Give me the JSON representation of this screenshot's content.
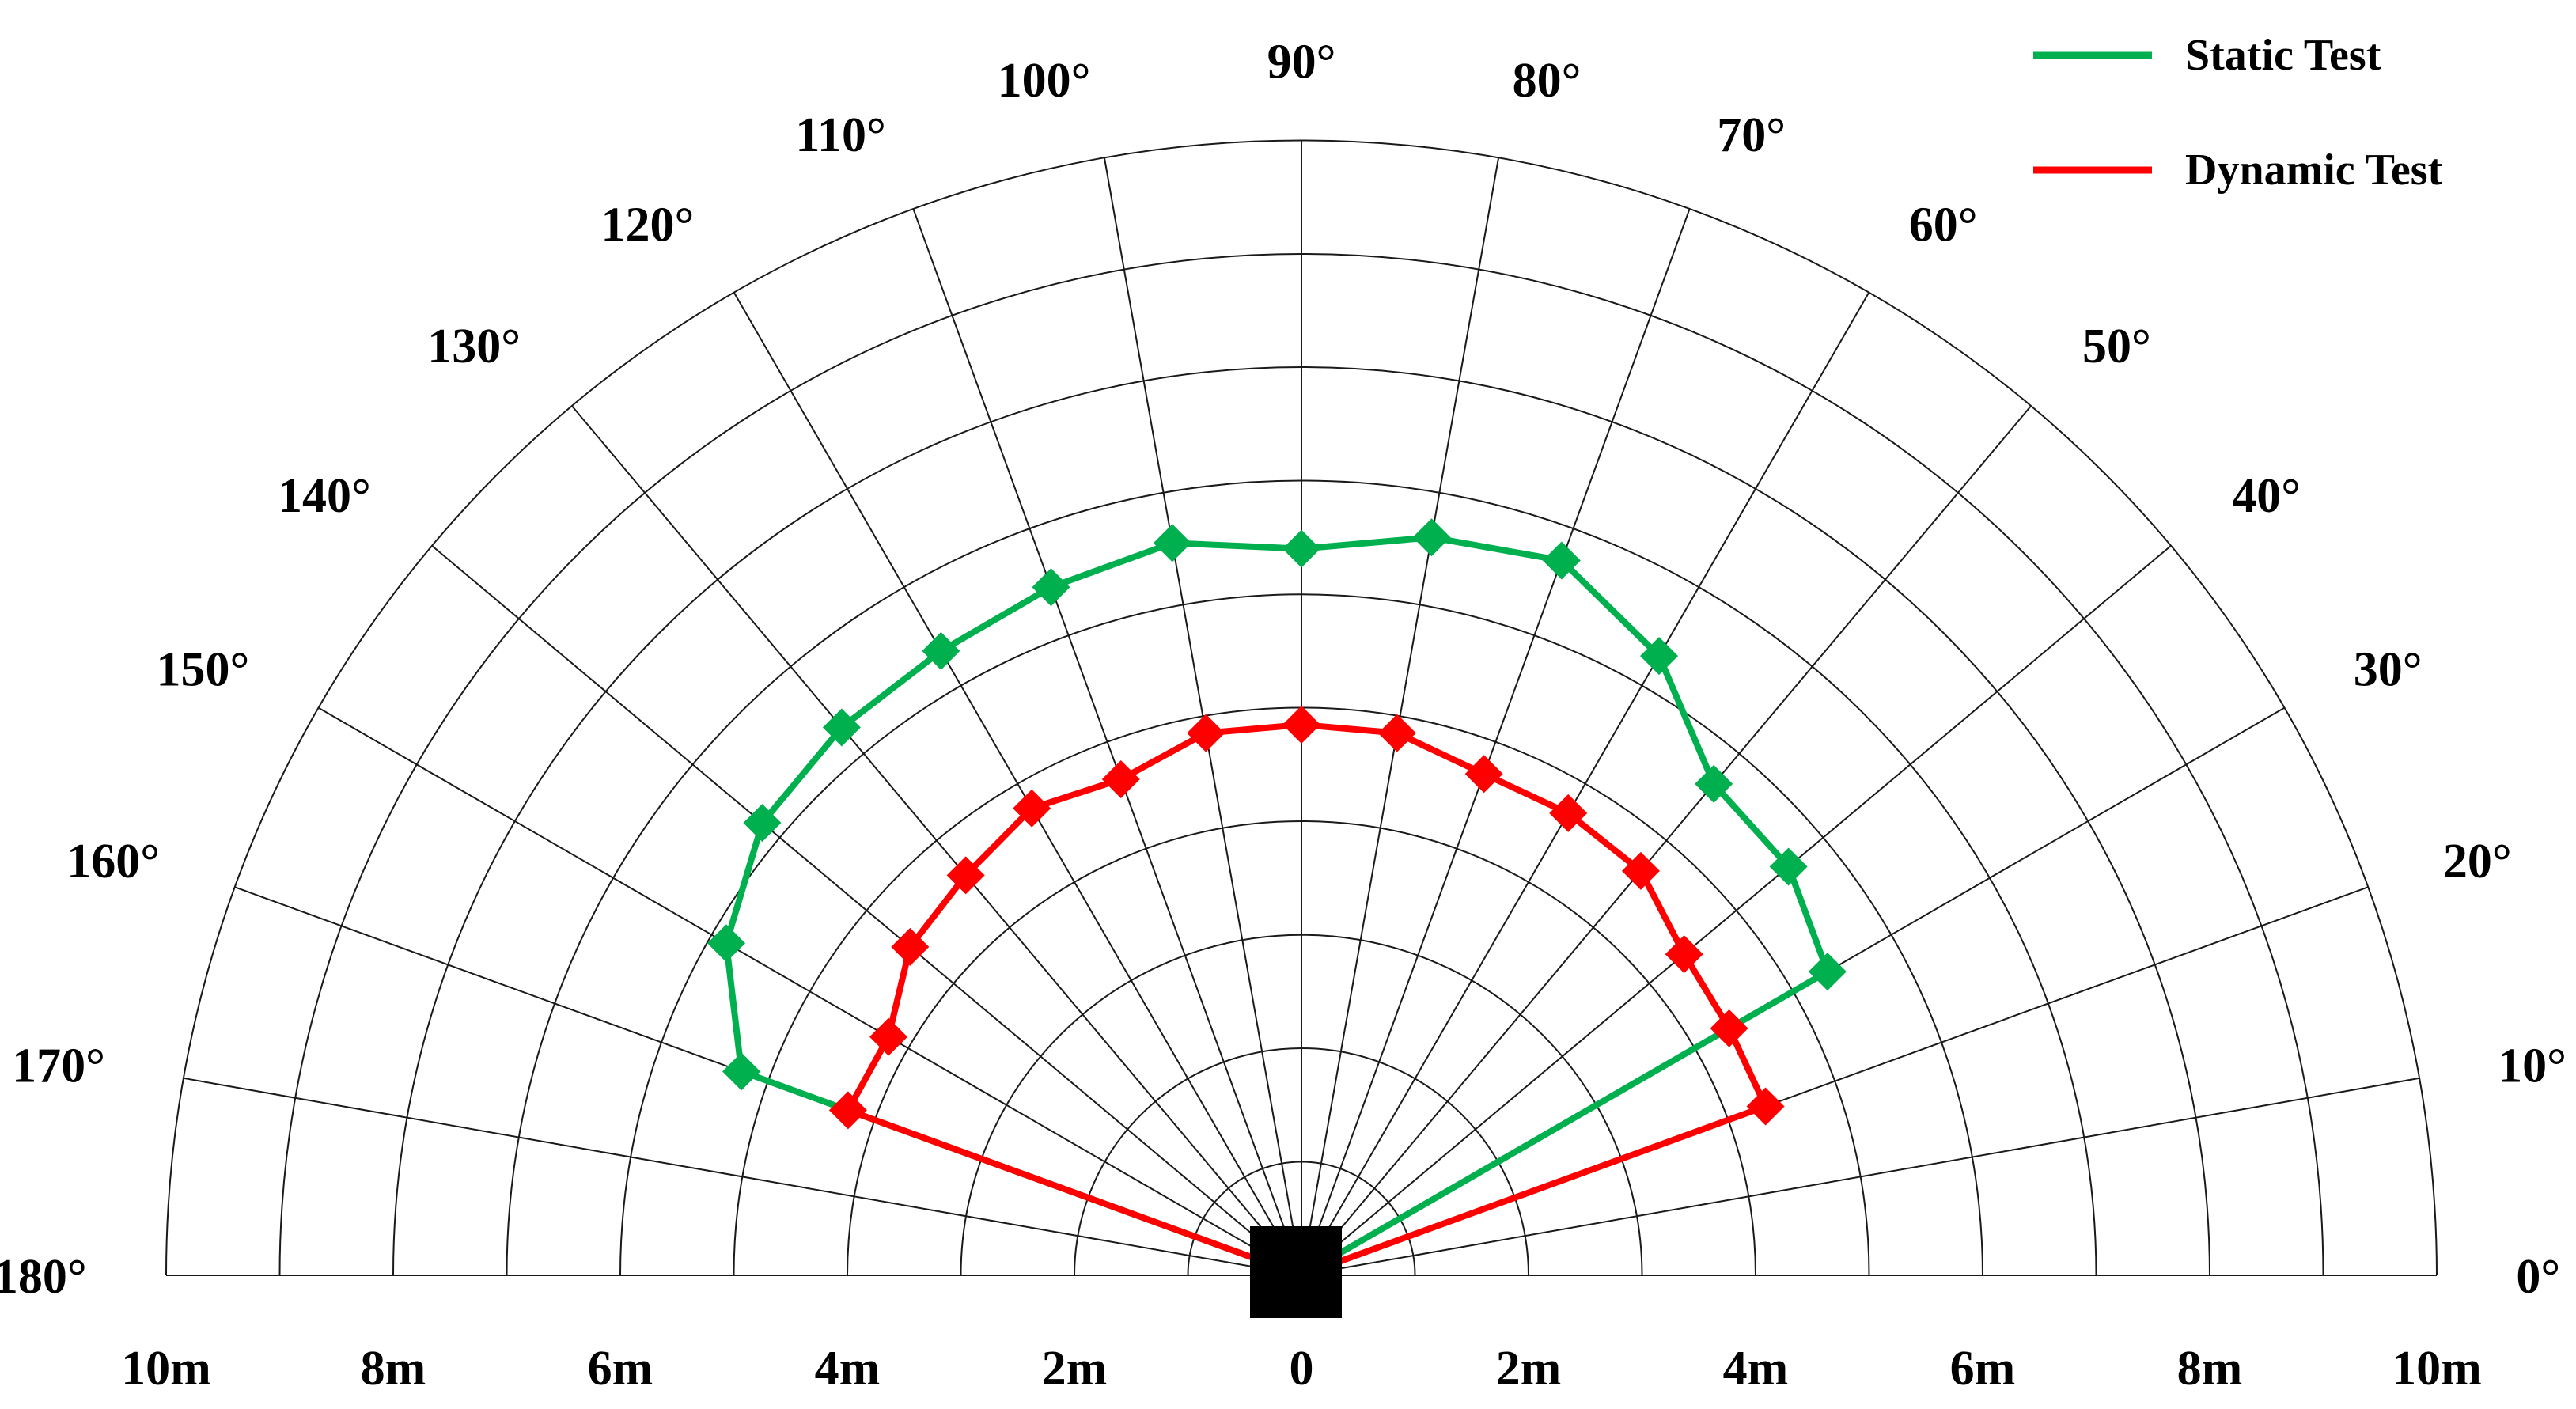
{
  "chart_data": {
    "type": "polar-line",
    "title": "",
    "angle_range_deg": [
      0,
      180
    ],
    "angle_tick_step_deg": 10,
    "angle_tick_labels": [
      "0°",
      "10°",
      "20°",
      "30°",
      "40°",
      "50°",
      "60°",
      "70°",
      "80°",
      "90°",
      "100°",
      "110°",
      "120°",
      "130°",
      "140°",
      "150°",
      "160°",
      "170°",
      "180°"
    ],
    "radius_range_m": [
      0,
      10
    ],
    "radius_ring_step_m": 1,
    "distance_tick_labels": [
      "10m",
      "8m",
      "6m",
      "4m",
      "2m",
      "0",
      "2m",
      "4m",
      "6m",
      "8m",
      "10m"
    ],
    "legend_position": "top-right",
    "series": [
      {
        "name": "Static Test",
        "color": "#00b04f",
        "marker": "diamond",
        "points": [
          {
            "angle": 0,
            "r": 0
          },
          {
            "angle": 10,
            "r": 0
          },
          {
            "angle": 30,
            "r": 5.35
          },
          {
            "angle": 40,
            "r": 5.6
          },
          {
            "angle": 50,
            "r": 5.65
          },
          {
            "angle": 60,
            "r": 6.3
          },
          {
            "angle": 70,
            "r": 6.7
          },
          {
            "angle": 80,
            "r": 6.6
          },
          {
            "angle": 90,
            "r": 6.4
          },
          {
            "angle": 100,
            "r": 6.55
          },
          {
            "angle": 110,
            "r": 6.45
          },
          {
            "angle": 120,
            "r": 6.35
          },
          {
            "angle": 130,
            "r": 6.3
          },
          {
            "angle": 140,
            "r": 6.2
          },
          {
            "angle": 150,
            "r": 5.85
          },
          {
            "angle": 160,
            "r": 5.25
          },
          {
            "angle": 170,
            "r": 0
          },
          {
            "angle": 180,
            "r": 0
          }
        ]
      },
      {
        "name": "Dynamic Test",
        "color": "#ff0000",
        "marker": "diamond",
        "points": [
          {
            "angle": 0,
            "r": 0
          },
          {
            "angle": 10,
            "r": 0
          },
          {
            "angle": 20,
            "r": 4.35
          },
          {
            "angle": 30,
            "r": 4.35
          },
          {
            "angle": 40,
            "r": 4.4
          },
          {
            "angle": 50,
            "r": 4.65
          },
          {
            "angle": 60,
            "r": 4.7
          },
          {
            "angle": 70,
            "r": 4.7
          },
          {
            "angle": 80,
            "r": 4.85
          },
          {
            "angle": 90,
            "r": 4.85
          },
          {
            "angle": 100,
            "r": 4.85
          },
          {
            "angle": 110,
            "r": 4.65
          },
          {
            "angle": 120,
            "r": 4.75
          },
          {
            "angle": 130,
            "r": 4.6
          },
          {
            "angle": 140,
            "r": 4.5
          },
          {
            "angle": 150,
            "r": 4.2
          },
          {
            "angle": 160,
            "r": 4.25
          },
          {
            "angle": 170,
            "r": 0
          },
          {
            "angle": 180,
            "r": 0
          }
        ]
      }
    ]
  }
}
